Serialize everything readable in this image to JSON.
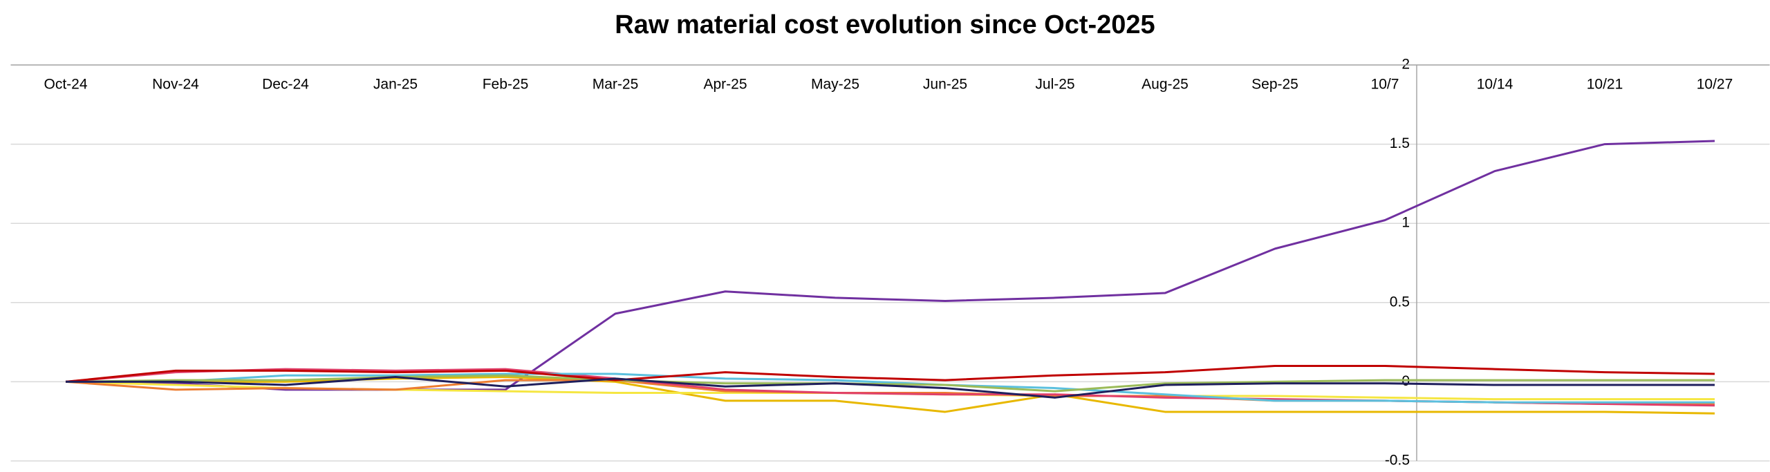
{
  "chart_data": {
    "type": "line",
    "title": "Raw material cost evolution since Oct-2025",
    "categories": [
      "Oct-24",
      "Nov-24",
      "Dec-24",
      "Jan-25",
      "Feb-25",
      "Mar-25",
      "Apr-25",
      "May-25",
      "Jun-25",
      "Jul-25",
      "Aug-25",
      "Sep-25",
      "10/7",
      "10/14",
      "10/21",
      "10/27"
    ],
    "ylim": [
      -0.5,
      2
    ],
    "yticks": [
      2,
      1.5,
      1,
      0.5,
      0,
      -0.5
    ],
    "grid": true,
    "series": [
      {
        "color": "#7030a0",
        "values": [
          0,
          -0.01,
          -0.05,
          -0.05,
          -0.05,
          0.43,
          0.57,
          0.53,
          0.51,
          0.53,
          0.56,
          0.84,
          1.02,
          1.33,
          1.5,
          1.52
        ]
      },
      {
        "color": "#e8b800",
        "values": [
          0,
          0,
          0,
          0.02,
          0.03,
          0,
          -0.12,
          -0.12,
          -0.19,
          -0.08,
          -0.19,
          -0.19,
          -0.19,
          -0.19,
          -0.19,
          -0.2
        ]
      },
      {
        "color": "#f5e642",
        "values": [
          0,
          -0.02,
          -0.04,
          -0.05,
          -0.06,
          -0.07,
          -0.07,
          -0.07,
          -0.08,
          -0.09,
          -0.09,
          -0.09,
          -0.1,
          -0.11,
          -0.11,
          -0.11
        ]
      },
      {
        "color": "#ed7d31",
        "values": [
          0,
          -0.05,
          -0.04,
          -0.05,
          0.01,
          0.01,
          -0.06,
          -0.07,
          -0.07,
          -0.09,
          -0.09,
          -0.12,
          -0.12,
          -0.13,
          -0.14,
          -0.14
        ]
      },
      {
        "color": "#e0406a",
        "values": [
          0,
          0.06,
          0.08,
          0.07,
          0.08,
          0.02,
          -0.05,
          -0.07,
          -0.08,
          -0.08,
          -0.1,
          -0.11,
          -0.12,
          -0.13,
          -0.14,
          -0.15
        ]
      },
      {
        "color": "#5bc0de",
        "values": [
          0,
          0,
          0.04,
          0.04,
          0.05,
          0.05,
          0.02,
          0.01,
          -0.02,
          -0.04,
          -0.08,
          -0.12,
          -0.12,
          -0.13,
          -0.13,
          -0.13
        ]
      },
      {
        "color": "#9bbb59",
        "values": [
          0,
          0.01,
          0.01,
          0.03,
          0.04,
          0.01,
          -0.01,
          -0.01,
          -0.02,
          -0.06,
          -0.01,
          0,
          0.01,
          0.01,
          0.01,
          0.01
        ]
      },
      {
        "color": "#c00000",
        "values": [
          0,
          0.07,
          0.07,
          0.06,
          0.07,
          0.01,
          0.06,
          0.03,
          0.01,
          0.04,
          0.06,
          0.1,
          0.1,
          0.08,
          0.06,
          0.05
        ]
      },
      {
        "color": "#1f1f5c",
        "values": [
          0,
          0,
          -0.02,
          0.03,
          -0.03,
          0.02,
          -0.03,
          -0.01,
          -0.04,
          -0.1,
          -0.02,
          -0.01,
          -0.01,
          -0.02,
          -0.02,
          -0.02
        ]
      }
    ]
  }
}
